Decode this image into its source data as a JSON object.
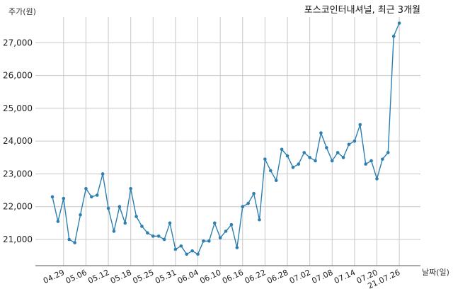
{
  "chart_data": {
    "type": "line",
    "title": "포스코인터내셔널, 최근 3개월",
    "ylabel": "주가(원)",
    "xlabel": "날짜(일)",
    "ylim": [
      20200,
      27700
    ],
    "yticks": [
      21000,
      22000,
      23000,
      24000,
      25000,
      26000,
      27000
    ],
    "ytick_labels": [
      "21,000",
      "22,000",
      "23,000",
      "24,000",
      "25,000",
      "26,000",
      "27,000"
    ],
    "xticks": [
      {
        "label": "04.29",
        "index": 2
      },
      {
        "label": "05.06",
        "index": 6
      },
      {
        "label": "05.12",
        "index": 10
      },
      {
        "label": "05.18",
        "index": 14
      },
      {
        "label": "05.25",
        "index": 18
      },
      {
        "label": "05.31",
        "index": 22
      },
      {
        "label": "06.04",
        "index": 26
      },
      {
        "label": "06.10",
        "index": 30
      },
      {
        "label": "06.16",
        "index": 34
      },
      {
        "label": "06.22",
        "index": 38
      },
      {
        "label": "06.28",
        "index": 42
      },
      {
        "label": "07.02",
        "index": 46
      },
      {
        "label": "07.08",
        "index": 50
      },
      {
        "label": "07.14",
        "index": 54
      },
      {
        "label": "07.20",
        "index": 58
      },
      {
        "label": "21.07.26",
        "index": 62
      }
    ],
    "grid": true,
    "series": [
      {
        "color": "#2c7fb0",
        "values": [
          22300,
          21550,
          22250,
          21000,
          20900,
          21750,
          22550,
          22300,
          22350,
          23000,
          21950,
          21250,
          22000,
          21500,
          22550,
          21700,
          21400,
          21200,
          21100,
          21100,
          21000,
          21500,
          20700,
          20800,
          20550,
          20650,
          20550,
          20950,
          20950,
          21500,
          21050,
          21250,
          21450,
          20750,
          22000,
          22100,
          22400,
          21600,
          23450,
          23100,
          22800,
          23750,
          23550,
          23200,
          23300,
          23650,
          23500,
          23400,
          24250,
          23800,
          23400,
          23650,
          23500,
          23900,
          24000,
          24500,
          23300,
          23400,
          22850,
          23450,
          23650,
          27200,
          27600
        ]
      }
    ]
  }
}
